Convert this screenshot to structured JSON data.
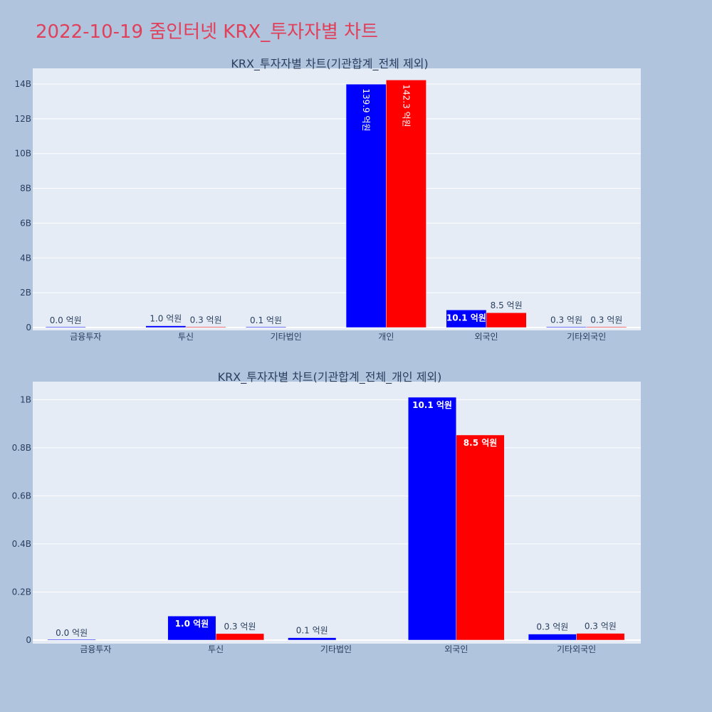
{
  "title": "2022-10-19 줌인터넷 KRX_투자자별 차트",
  "colors": {
    "background": "#b0c4de",
    "plot_bg": "#e5ecf6",
    "grid": "#ffffff",
    "series_a": "#0000ff",
    "series_b": "#ff0000",
    "title": "#e0405a",
    "text": "#2a3f5f"
  },
  "chart_data": [
    {
      "type": "bar",
      "title": "KRX_투자자별 차트(기관합계_전체 제외)",
      "categories": [
        "금융투자",
        "투신",
        "기타법인",
        "개인",
        "외국인",
        "기타외국인"
      ],
      "yticks": [
        {
          "value": 0,
          "label": "0"
        },
        {
          "value": 2000000000,
          "label": "2B"
        },
        {
          "value": 4000000000,
          "label": "4B"
        },
        {
          "value": 6000000000,
          "label": "6B"
        },
        {
          "value": 8000000000,
          "label": "8B"
        },
        {
          "value": 10000000000,
          "label": "10B"
        },
        {
          "value": 12000000000,
          "label": "12B"
        },
        {
          "value": 14000000000,
          "label": "14B"
        }
      ],
      "ylim": [
        0,
        14900000000
      ],
      "series": [
        {
          "values": [
            0,
            100000000,
            10000000,
            13990000000,
            1010000000,
            30000000
          ],
          "labels": [
            "0.0 억원",
            "1.0 억원",
            "0.1 억원",
            "139.9 억원",
            "10.1 억원",
            "0.3 억원"
          ],
          "label_pos": [
            "out",
            "out",
            "out",
            "in-v",
            "in",
            "out"
          ]
        },
        {
          "values": [
            null,
            30000000,
            null,
            14230000000,
            850000000,
            30000000
          ],
          "labels": [
            "",
            "0.3 억원",
            "",
            "142.3 억원",
            "8.5 억원",
            "0.3 억원"
          ],
          "label_pos": [
            "",
            "out",
            "",
            "in-v",
            "out",
            "out"
          ]
        }
      ]
    },
    {
      "type": "bar",
      "title": "KRX_투자자별 차트(기관합계_전체_개인 제외)",
      "categories": [
        "금융투자",
        "투신",
        "기타법인",
        "외국인",
        "기타외국인"
      ],
      "yticks": [
        {
          "value": 0,
          "label": "0"
        },
        {
          "value": 200000000,
          "label": "0.2B"
        },
        {
          "value": 400000000,
          "label": "0.4B"
        },
        {
          "value": 600000000,
          "label": "0.6B"
        },
        {
          "value": 800000000,
          "label": "0.8B"
        },
        {
          "value": 1000000000,
          "label": "1B"
        }
      ],
      "ylim": [
        0,
        1075000000
      ],
      "series": [
        {
          "values": [
            0,
            100000000,
            10000000,
            1010000000,
            25000000
          ],
          "labels": [
            "0.0 억원",
            "1.0 억원",
            "0.1 억원",
            "10.1 억원",
            "0.3 억원"
          ],
          "label_pos": [
            "out",
            "in",
            "out",
            "in",
            "out"
          ]
        },
        {
          "values": [
            null,
            27000000,
            null,
            853000000,
            28000000
          ],
          "labels": [
            "",
            "0.3 억원",
            "",
            "8.5 억원",
            "0.3 억원"
          ],
          "label_pos": [
            "",
            "out",
            "",
            "in",
            "out"
          ]
        }
      ]
    }
  ]
}
